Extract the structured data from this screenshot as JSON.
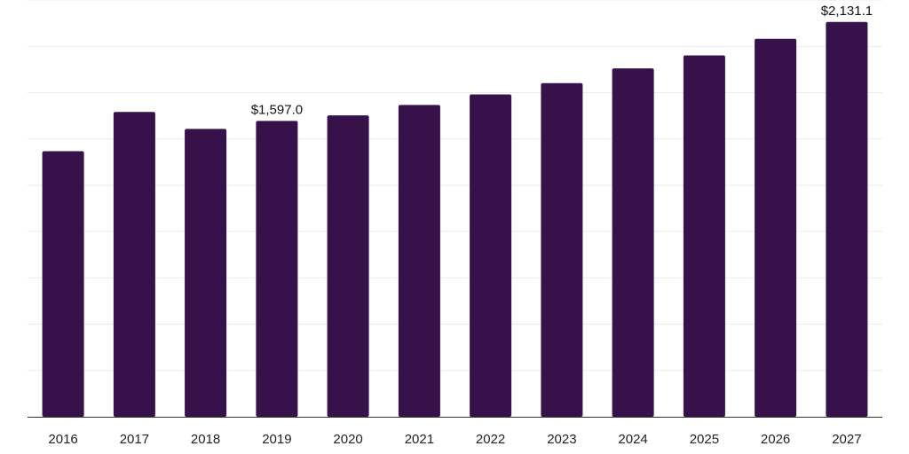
{
  "chart_data": {
    "type": "bar",
    "title": "",
    "xlabel": "",
    "ylabel": "",
    "categories": [
      "2016",
      "2017",
      "2018",
      "2019",
      "2020",
      "2021",
      "2022",
      "2023",
      "2024",
      "2025",
      "2026",
      "2027"
    ],
    "values": [
      1434,
      1646,
      1554,
      1597,
      1627,
      1683,
      1740,
      1801,
      1881,
      1951,
      2041,
      2131.1
    ],
    "data_labels": [
      {
        "index": 3,
        "text": "$1,597.0"
      },
      {
        "index": 11,
        "text": "$2,131.1"
      }
    ],
    "ylim": [
      0,
      2250
    ],
    "grid": true,
    "legend": "none",
    "colors": {
      "bar": "#371149",
      "grid": "#ebebeb",
      "axis": "#333333"
    }
  }
}
